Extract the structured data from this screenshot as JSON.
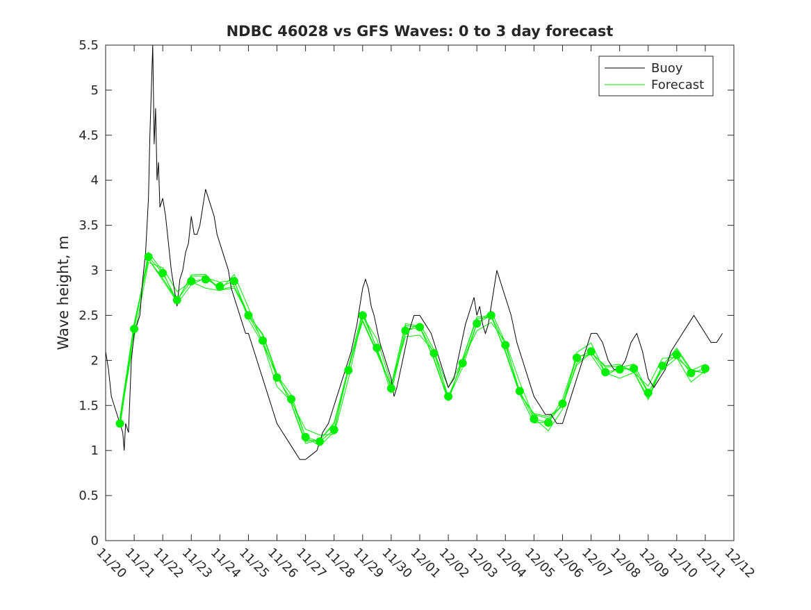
{
  "chart_data": {
    "type": "line",
    "title": "NDBC 46028 vs GFS Waves: 0 to 3 day forecast",
    "xlabel": "",
    "ylabel": "Wave height, m",
    "xlim": [
      0,
      22
    ],
    "ylim": [
      0,
      5.5
    ],
    "x_ticks": [
      {
        "x": 0,
        "label": "11/20"
      },
      {
        "x": 1,
        "label": "11/21"
      },
      {
        "x": 2,
        "label": "11/22"
      },
      {
        "x": 3,
        "label": "11/23"
      },
      {
        "x": 4,
        "label": "11/24"
      },
      {
        "x": 5,
        "label": "11/25"
      },
      {
        "x": 6,
        "label": "11/26"
      },
      {
        "x": 7,
        "label": "11/27"
      },
      {
        "x": 8,
        "label": "11/28"
      },
      {
        "x": 9,
        "label": "11/29"
      },
      {
        "x": 10,
        "label": "11/30"
      },
      {
        "x": 11,
        "label": "12/01"
      },
      {
        "x": 12,
        "label": "12/02"
      },
      {
        "x": 13,
        "label": "12/03"
      },
      {
        "x": 14,
        "label": "12/04"
      },
      {
        "x": 15,
        "label": "12/05"
      },
      {
        "x": 16,
        "label": "12/06"
      },
      {
        "x": 17,
        "label": "12/07"
      },
      {
        "x": 18,
        "label": "12/08"
      },
      {
        "x": 19,
        "label": "12/09"
      },
      {
        "x": 20,
        "label": "12/10"
      },
      {
        "x": 21,
        "label": "12/11"
      },
      {
        "x": 22,
        "label": "12/12"
      }
    ],
    "y_ticks": [
      {
        "y": 0,
        "label": "0"
      },
      {
        "y": 0.5,
        "label": "0.5"
      },
      {
        "y": 1,
        "label": "1"
      },
      {
        "y": 1.5,
        "label": "1.5"
      },
      {
        "y": 2,
        "label": "2"
      },
      {
        "y": 2.5,
        "label": "2.5"
      },
      {
        "y": 3,
        "label": "3"
      },
      {
        "y": 3.5,
        "label": "3.5"
      },
      {
        "y": 4,
        "label": "4"
      },
      {
        "y": 4.5,
        "label": "4.5"
      },
      {
        "y": 5,
        "label": "5"
      },
      {
        "y": 5.5,
        "label": "5.5"
      }
    ],
    "legend": {
      "position": "top-right",
      "entries": [
        {
          "label": "Buoy",
          "color": "#000000"
        },
        {
          "label": "Forecast",
          "color": "#00ee00"
        }
      ]
    },
    "colors": {
      "buoy": "#000000",
      "forecast": "#00ee00",
      "axis": "#262626"
    },
    "series": [
      {
        "name": "Buoy",
        "x": [
          0,
          0.1,
          0.2,
          0.3,
          0.4,
          0.5,
          0.6,
          0.65,
          0.7,
          0.8,
          0.9,
          1.0,
          1.1,
          1.2,
          1.3,
          1.4,
          1.5,
          1.55,
          1.6,
          1.65,
          1.7,
          1.75,
          1.8,
          1.85,
          1.9,
          2.0,
          2.1,
          2.2,
          2.3,
          2.4,
          2.5,
          2.6,
          2.7,
          2.8,
          2.9,
          3.0,
          3.1,
          3.2,
          3.3,
          3.4,
          3.5,
          3.6,
          3.7,
          3.8,
          3.9,
          4.0,
          4.1,
          4.2,
          4.3,
          4.4,
          4.5,
          4.6,
          4.7,
          4.8,
          4.9,
          5.0,
          5.1,
          5.2,
          5.3,
          5.4,
          5.5,
          5.6,
          5.7,
          5.8,
          5.9,
          6.0,
          6.2,
          6.4,
          6.6,
          6.8,
          7.0,
          7.2,
          7.4,
          7.6,
          7.8,
          8.0,
          8.2,
          8.4,
          8.6,
          8.8,
          8.9,
          9.0,
          9.1,
          9.2,
          9.3,
          9.4,
          9.6,
          9.8,
          10.0,
          10.1,
          10.2,
          10.4,
          10.6,
          10.8,
          11.0,
          11.2,
          11.4,
          11.6,
          11.8,
          12.0,
          12.2,
          12.4,
          12.6,
          12.8,
          12.9,
          13.0,
          13.1,
          13.2,
          13.3,
          13.4,
          13.5,
          13.6,
          13.7,
          13.8,
          14.0,
          14.2,
          14.4,
          14.6,
          14.8,
          15.0,
          15.2,
          15.4,
          15.6,
          15.8,
          16.0,
          16.2,
          16.4,
          16.6,
          16.8,
          17.0,
          17.2,
          17.4,
          17.6,
          17.8,
          18.0,
          18.2,
          18.4,
          18.6,
          18.8,
          19.0,
          19.2,
          19.4,
          19.6,
          19.8,
          20.0,
          20.2,
          20.4,
          20.6,
          20.8,
          21.0,
          21.2,
          21.4,
          21.6
        ],
        "values": [
          2.1,
          1.9,
          1.6,
          1.5,
          1.4,
          1.3,
          1.2,
          1.0,
          1.3,
          1.2,
          2.0,
          2.3,
          2.4,
          2.5,
          2.9,
          3.2,
          3.8,
          4.5,
          5.0,
          5.5,
          4.4,
          4.8,
          4.0,
          4.2,
          3.7,
          3.8,
          3.6,
          3.3,
          3.0,
          2.8,
          2.6,
          2.9,
          3.0,
          3.2,
          3.3,
          3.6,
          3.4,
          3.4,
          3.5,
          3.7,
          3.9,
          3.8,
          3.7,
          3.6,
          3.4,
          3.3,
          3.2,
          3.1,
          3.0,
          2.8,
          2.7,
          2.6,
          2.5,
          2.4,
          2.3,
          2.3,
          2.2,
          2.1,
          2.0,
          1.9,
          1.8,
          1.7,
          1.6,
          1.5,
          1.4,
          1.3,
          1.2,
          1.1,
          1.0,
          0.9,
          0.9,
          0.95,
          1.0,
          1.2,
          1.3,
          1.5,
          1.7,
          1.9,
          2.1,
          2.4,
          2.6,
          2.8,
          2.9,
          2.8,
          2.6,
          2.5,
          2.2,
          2.0,
          1.8,
          1.6,
          1.7,
          2.0,
          2.3,
          2.5,
          2.5,
          2.4,
          2.3,
          2.1,
          1.9,
          1.7,
          1.8,
          2.1,
          2.4,
          2.6,
          2.7,
          2.5,
          2.6,
          2.4,
          2.3,
          2.4,
          2.6,
          2.8,
          3.0,
          2.9,
          2.7,
          2.5,
          2.2,
          2.0,
          1.8,
          1.6,
          1.5,
          1.4,
          1.4,
          1.3,
          1.3,
          1.5,
          1.7,
          1.9,
          2.1,
          2.3,
          2.3,
          2.2,
          2.0,
          1.9,
          1.9,
          2.0,
          2.2,
          2.3,
          2.1,
          1.8,
          1.7,
          1.8,
          1.9,
          2.1,
          2.2,
          2.3,
          2.4,
          2.5,
          2.4,
          2.3,
          2.2,
          2.2,
          2.3
        ]
      },
      {
        "name": "Forecast",
        "x": [
          0.5,
          1.0,
          1.5,
          2.0,
          2.5,
          3.0,
          3.5,
          4.0,
          4.5,
          5.0,
          5.5,
          6.0,
          6.5,
          7.0,
          7.5,
          8.0,
          8.5,
          9.0,
          9.5,
          10.0,
          10.5,
          11.0,
          11.5,
          12.0,
          12.5,
          13.0,
          13.5,
          14.0,
          14.5,
          15.0,
          15.5,
          16.0,
          16.5,
          17.0,
          17.5,
          18.0,
          18.5,
          19.0,
          19.5,
          20.0,
          20.5,
          21.0
        ],
        "values": [
          1.3,
          2.35,
          3.15,
          2.97,
          2.67,
          2.88,
          2.9,
          2.82,
          2.88,
          2.5,
          2.22,
          1.81,
          1.57,
          1.15,
          1.1,
          1.23,
          1.89,
          2.5,
          2.14,
          1.69,
          2.33,
          2.37,
          2.08,
          1.6,
          1.97,
          2.41,
          2.5,
          2.17,
          1.66,
          1.35,
          1.31,
          1.52,
          2.03,
          2.1,
          1.87,
          1.9,
          1.91,
          1.64,
          1.94,
          2.06,
          1.86,
          1.91
        ]
      }
    ]
  }
}
